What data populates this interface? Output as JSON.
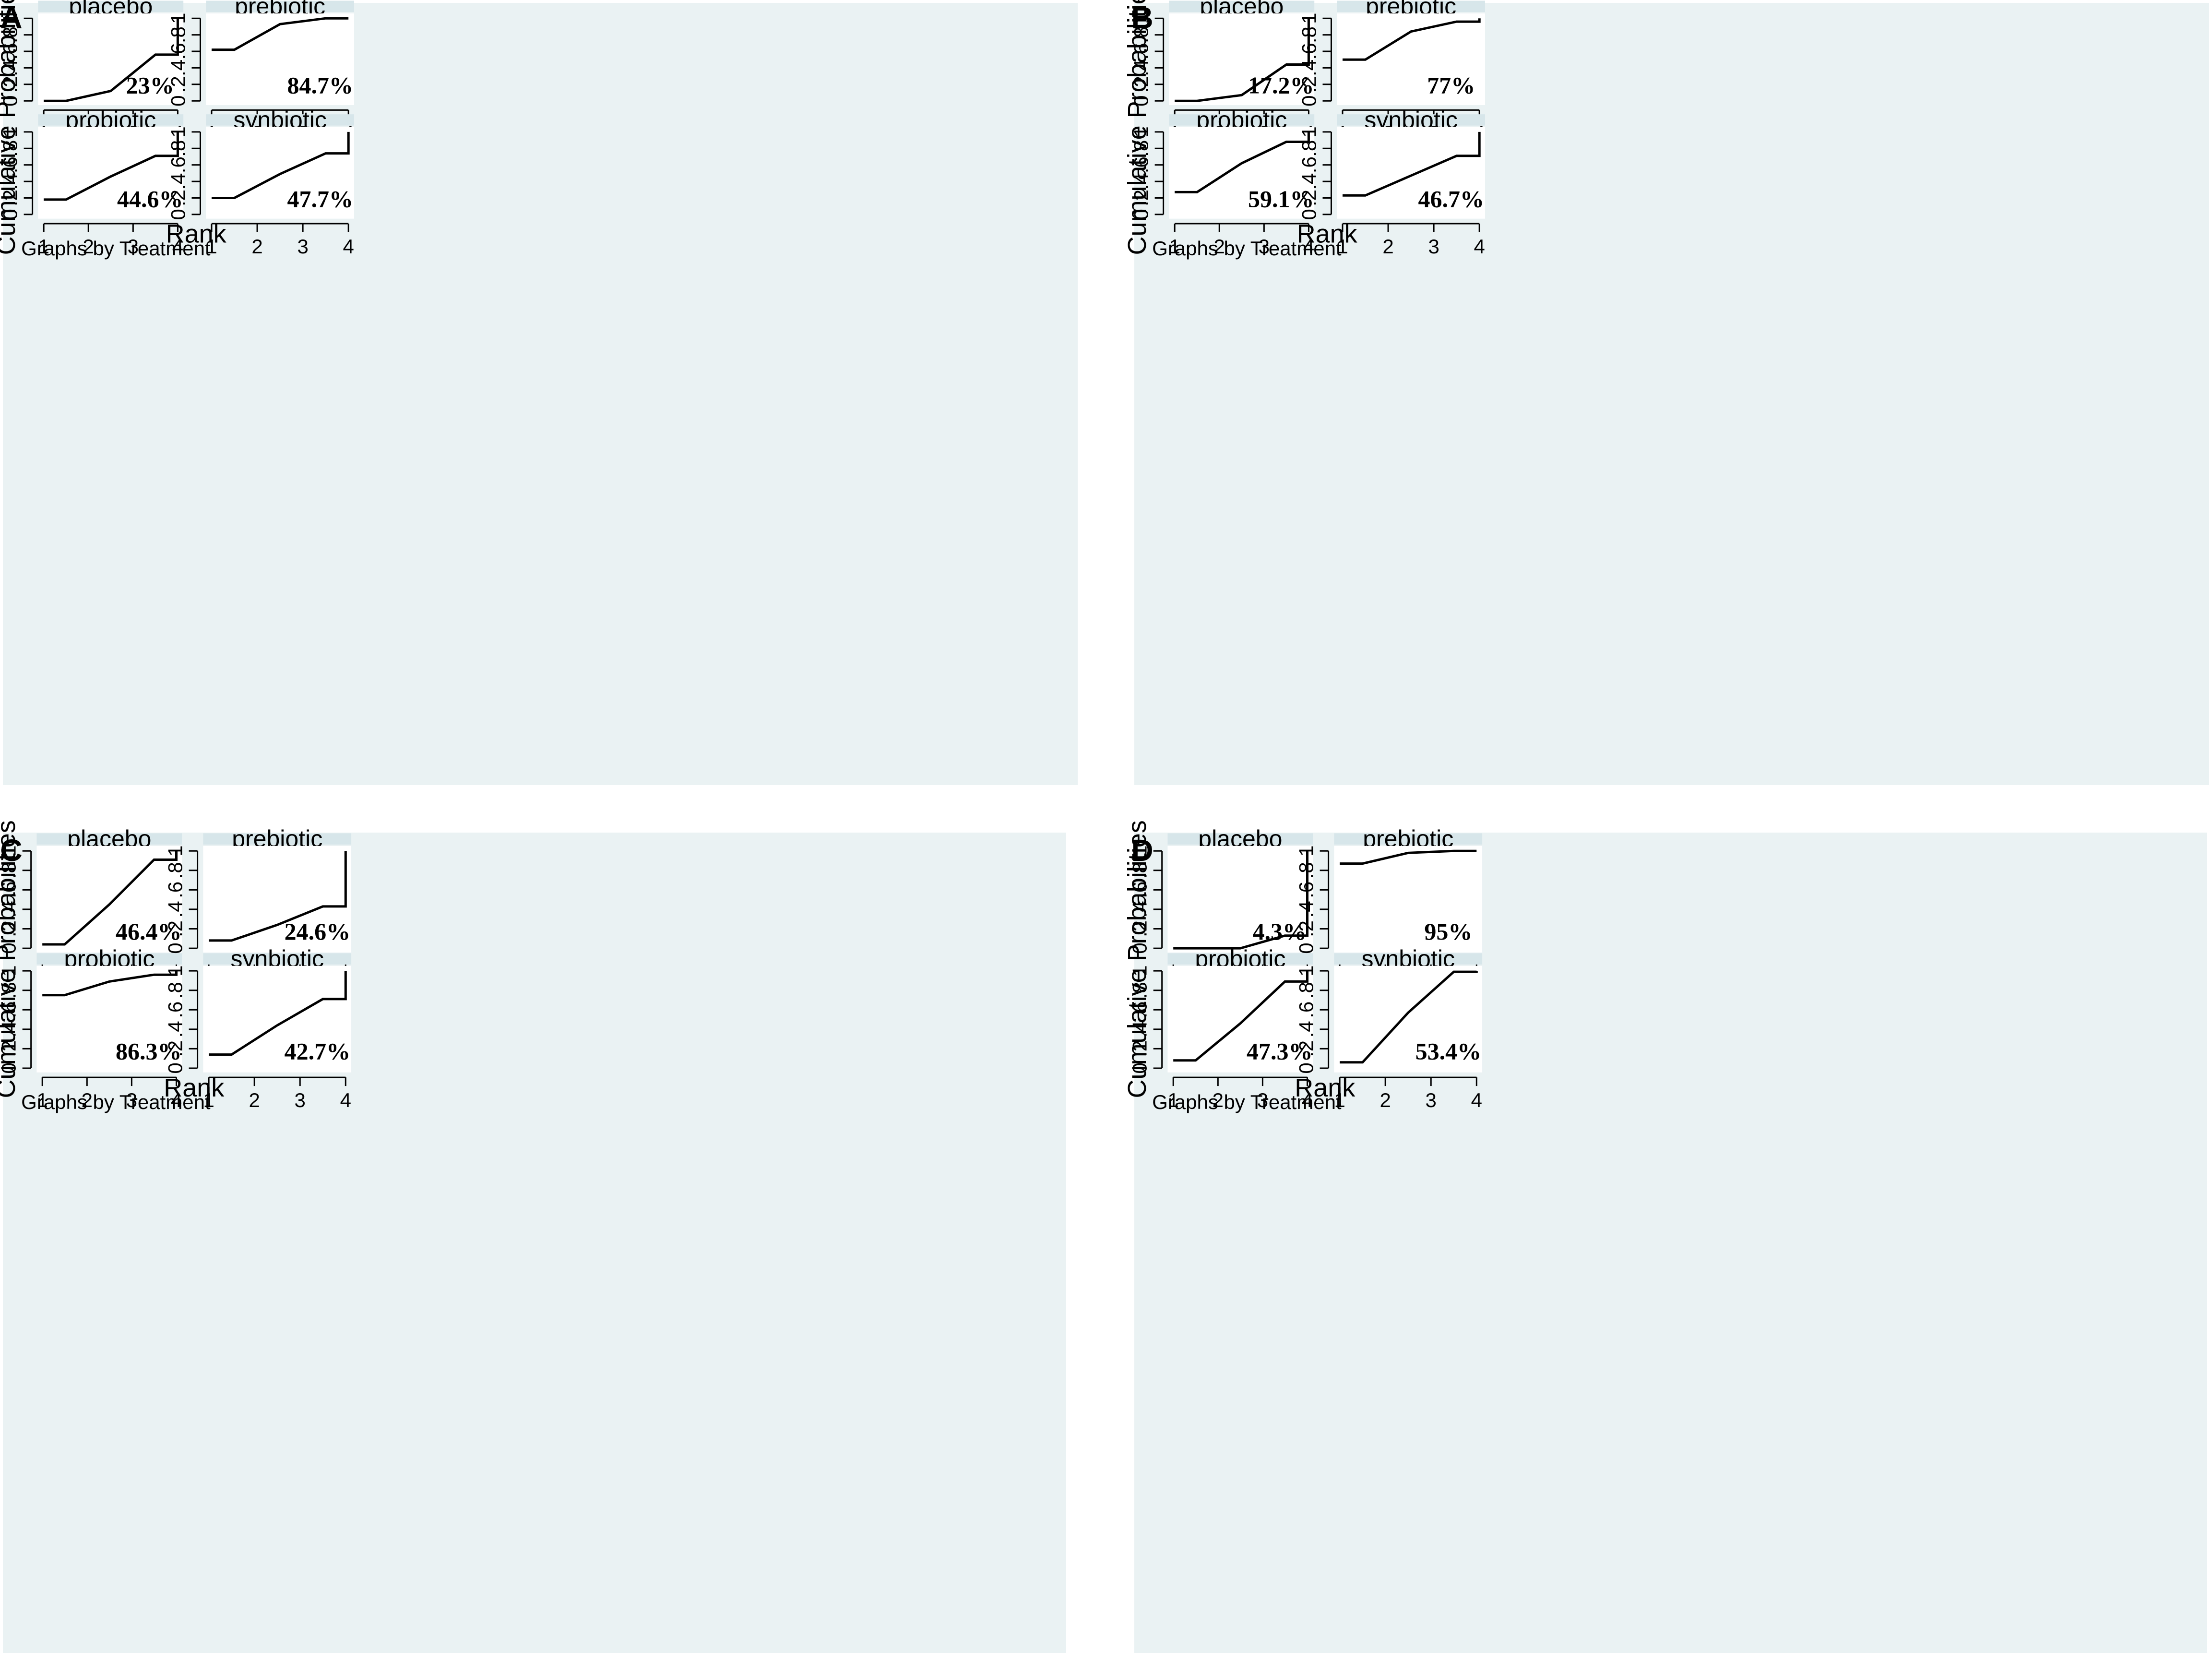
{
  "figure": {
    "xlabel": "Rank",
    "ylabel": "Cumulative Probabilities",
    "note": "Graphs by Treatment",
    "x_ticks": [
      "1",
      "2",
      "3",
      "4"
    ],
    "y_ticks": [
      "0",
      ".2",
      ".4",
      ".6",
      ".8",
      "1"
    ],
    "colors": {
      "background": "#eaf2f3",
      "strip": "#d7e6ea",
      "plot": "#ffffff",
      "line": "#000000",
      "axis": "#000000"
    }
  },
  "chart_data": [
    {
      "label": "A",
      "type": "line",
      "xlabel": "Rank",
      "ylabel": "Cumulative Probabilities",
      "xlim": [
        1,
        4
      ],
      "ylim": [
        0,
        1
      ],
      "panels": [
        {
          "title": "placebo",
          "annotation": "23%",
          "x": [
            1,
            1.5,
            2.5,
            3.5,
            4,
            4
          ],
          "y": [
            0,
            0,
            0.12,
            0.56,
            0.56,
            1
          ]
        },
        {
          "title": "prebiotic",
          "annotation": "84.7%",
          "x": [
            1,
            1.5,
            2.5,
            3.5,
            4,
            4
          ],
          "y": [
            0.62,
            0.62,
            0.93,
            1.0,
            1.0,
            1
          ]
        },
        {
          "title": "probiotic",
          "annotation": "44.6%",
          "x": [
            1,
            1.5,
            2.5,
            3.5,
            4,
            4
          ],
          "y": [
            0.18,
            0.18,
            0.46,
            0.71,
            0.71,
            1
          ]
        },
        {
          "title": "synbiotic",
          "annotation": "47.7%",
          "x": [
            1,
            1.5,
            2.5,
            3.5,
            4,
            4
          ],
          "y": [
            0.2,
            0.2,
            0.49,
            0.74,
            0.74,
            1
          ]
        }
      ]
    },
    {
      "label": "B",
      "type": "line",
      "xlabel": "Rank",
      "ylabel": "Cumulative Probabilities",
      "xlim": [
        1,
        4
      ],
      "ylim": [
        0,
        1
      ],
      "panels": [
        {
          "title": "placebo",
          "annotation": "17.2%",
          "x": [
            1,
            1.5,
            2.5,
            3.5,
            4,
            4
          ],
          "y": [
            0,
            0,
            0.07,
            0.44,
            0.44,
            1
          ]
        },
        {
          "title": "prebiotic",
          "annotation": "77%",
          "x": [
            1,
            1.5,
            2.5,
            3.5,
            4,
            4
          ],
          "y": [
            0.5,
            0.5,
            0.84,
            0.96,
            0.96,
            1
          ]
        },
        {
          "title": "probiotic",
          "annotation": "59.1%",
          "x": [
            1,
            1.5,
            2.5,
            3.5,
            4,
            4
          ],
          "y": [
            0.27,
            0.27,
            0.62,
            0.88,
            0.88,
            1
          ]
        },
        {
          "title": "synbiotic",
          "annotation": "46.7%",
          "x": [
            1,
            1.5,
            2.5,
            3.5,
            4,
            4
          ],
          "y": [
            0.23,
            0.23,
            0.47,
            0.71,
            0.71,
            1
          ]
        }
      ]
    },
    {
      "label": "C",
      "type": "line",
      "xlabel": "Rank",
      "ylabel": "Cumulative Probabilities",
      "xlim": [
        1,
        4
      ],
      "ylim": [
        0,
        1
      ],
      "panels": [
        {
          "title": "placebo",
          "annotation": "46.4%",
          "x": [
            1,
            1.5,
            2.5,
            3.5,
            4,
            4
          ],
          "y": [
            0.04,
            0.04,
            0.45,
            0.91,
            0.91,
            1
          ]
        },
        {
          "title": "prebiotic",
          "annotation": "24.6%",
          "x": [
            1,
            1.5,
            2.5,
            3.5,
            4,
            4
          ],
          "y": [
            0.08,
            0.08,
            0.24,
            0.43,
            0.43,
            1
          ]
        },
        {
          "title": "probiotic",
          "annotation": "86.3%",
          "x": [
            1,
            1.5,
            2.5,
            3.5,
            4,
            4
          ],
          "y": [
            0.75,
            0.75,
            0.89,
            0.96,
            0.96,
            1
          ]
        },
        {
          "title": "synbiotic",
          "annotation": "42.7%",
          "x": [
            1,
            1.5,
            2.5,
            3.5,
            4,
            4
          ],
          "y": [
            0.14,
            0.14,
            0.44,
            0.71,
            0.71,
            1
          ]
        }
      ]
    },
    {
      "label": "D",
      "type": "line",
      "xlabel": "Rank",
      "ylabel": "Cumulative Probabilities",
      "xlim": [
        1,
        4
      ],
      "ylim": [
        0,
        1
      ],
      "panels": [
        {
          "title": "placebo",
          "annotation": "4.3%",
          "x": [
            1,
            1.5,
            2.5,
            3.5,
            4,
            4
          ],
          "y": [
            0,
            0,
            0,
            0.13,
            0.13,
            1
          ]
        },
        {
          "title": "prebiotic",
          "annotation": "95%",
          "x": [
            1,
            1.5,
            2.5,
            3.5,
            4,
            4
          ],
          "y": [
            0.87,
            0.87,
            0.98,
            1.0,
            1.0,
            1
          ]
        },
        {
          "title": "probiotic",
          "annotation": "47.3%",
          "x": [
            1,
            1.5,
            2.5,
            3.5,
            4,
            4
          ],
          "y": [
            0.08,
            0.08,
            0.46,
            0.89,
            0.89,
            1
          ]
        },
        {
          "title": "synbiotic",
          "annotation": "53.4%",
          "x": [
            1,
            1.5,
            2.5,
            3.5,
            4,
            4
          ],
          "y": [
            0.06,
            0.06,
            0.57,
            0.99,
            0.99,
            1
          ]
        }
      ]
    }
  ]
}
